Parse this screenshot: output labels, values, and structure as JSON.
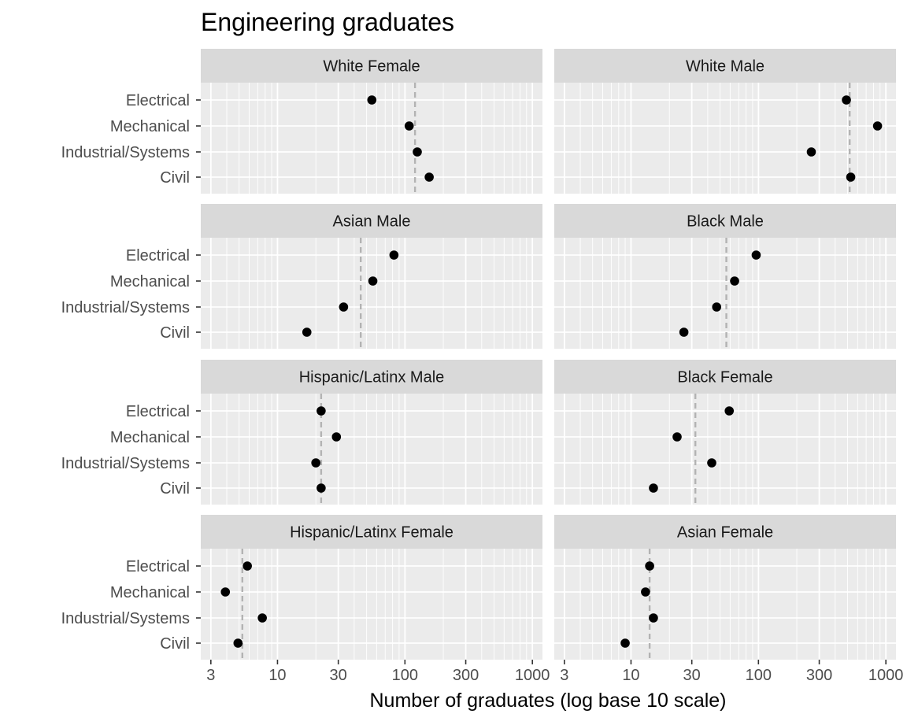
{
  "chart_data": {
    "type": "scatter",
    "title": "Engineering graduates",
    "xlabel": "Number of graduates (log base 10 scale)",
    "ylabel": "",
    "x_scale": "log10",
    "xlim": [
      2.5,
      1200
    ],
    "x_ticks": [
      3,
      10,
      30,
      100,
      300,
      1000
    ],
    "x_tick_labels": [
      "3",
      "10",
      "30",
      "100",
      "300",
      "1000"
    ],
    "categories": [
      "Electrical",
      "Mechanical",
      "Industrial/Systems",
      "Civil"
    ],
    "reference_line": "dashed vertical line per panel",
    "panels": [
      {
        "name": "White Female",
        "values": [
          55,
          108,
          125,
          155
        ],
        "reference": 120
      },
      {
        "name": "White Male",
        "values": [
          490,
          860,
          260,
          530
        ],
        "reference": 520
      },
      {
        "name": "Asian Male",
        "values": [
          82,
          56,
          33,
          17
        ],
        "reference": 45
      },
      {
        "name": "Black Male",
        "values": [
          96,
          65,
          47,
          26
        ],
        "reference": 56
      },
      {
        "name": "Hispanic/Latinx Male",
        "values": [
          22,
          29,
          20,
          22
        ],
        "reference": 22
      },
      {
        "name": "Black Female",
        "values": [
          59,
          23,
          43,
          15
        ],
        "reference": 32
      },
      {
        "name": "Hispanic/Latinx Female",
        "values": [
          5.8,
          3.9,
          7.6,
          4.9
        ],
        "reference": 5.3
      },
      {
        "name": "Asian Female",
        "values": [
          14,
          13,
          15,
          9
        ],
        "reference": 14
      }
    ]
  }
}
